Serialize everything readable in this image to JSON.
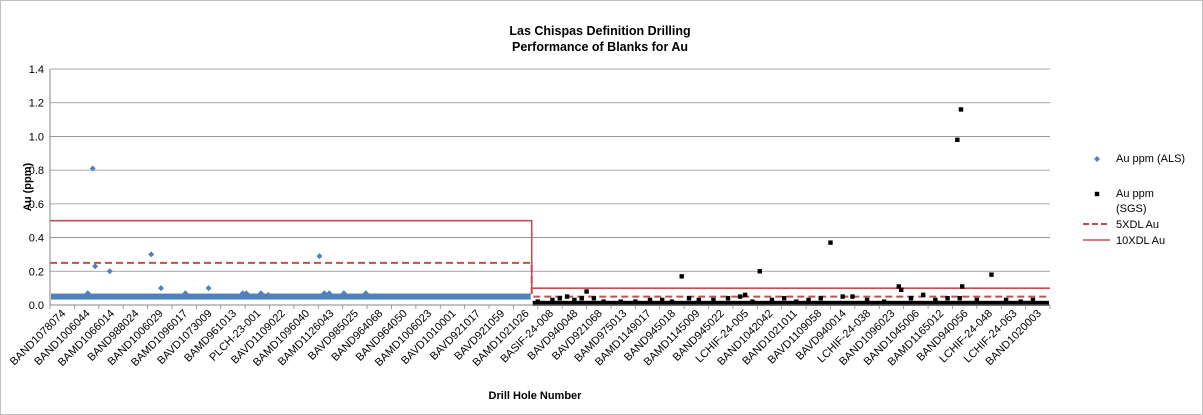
{
  "chart_data": {
    "type": "scatter",
    "title": [
      "Las Chispas Definition Drilling",
      "Performance of Blanks for Au"
    ],
    "xlabel": "Drill Hole Number",
    "ylabel": "Au (ppm)",
    "ylim": [
      0,
      1.4
    ],
    "yticks": [
      "0.0",
      "0.2",
      "0.4",
      "0.6",
      "0.8",
      "1.0",
      "1.2",
      "1.4"
    ],
    "grid": true,
    "legend_position": "right",
    "categories": [
      "BAND1078074",
      "BAND1006044",
      "BAMD1066014",
      "BAND988024",
      "BAND1006029",
      "BAMD1096017",
      "BAVD1073009",
      "BAMD961013",
      "PLCH-23-001",
      "BAVD1109022",
      "BAMD1096040",
      "BAMD1126043",
      "BAVD985025",
      "BAND964068",
      "BAND964050",
      "BAMD1006023",
      "BAVD1010001",
      "BAVD921017",
      "BAVD921059",
      "BAMD1021026",
      "BASIF-24-008",
      "BAVD940048",
      "BAVD921068",
      "BAMD975013",
      "BAMD1149017",
      "BAND945018",
      "BAMD1145009",
      "BAND945022",
      "LCHIF-24-005",
      "BAND1042042",
      "BAND1021011",
      "BAVD1109058",
      "BAVD940014",
      "LCHIF-24-038",
      "BAND1096023",
      "BAND1045006",
      "BAMD1165012",
      "BAND940056",
      "LCHIF-24-048",
      "LCHIF-24-063",
      "BAND1020003"
    ],
    "series": [
      {
        "name": "Au ppm (ALS)",
        "color": "#4f81bd",
        "marker": "diamond",
        "baseline_value": 0.05,
        "x_range": [
          0,
          19.75
        ],
        "points": [
          [
            0.2,
            0.05
          ],
          [
            1.55,
            0.07
          ],
          [
            1.75,
            0.81
          ],
          [
            1.85,
            0.23
          ],
          [
            2.45,
            0.2
          ],
          [
            4.15,
            0.3
          ],
          [
            4.55,
            0.1
          ],
          [
            5.55,
            0.07
          ],
          [
            6.5,
            0.1
          ],
          [
            7.9,
            0.07
          ],
          [
            8.05,
            0.07
          ],
          [
            8.65,
            0.07
          ],
          [
            8.95,
            0.06
          ],
          [
            11.05,
            0.29
          ],
          [
            11.25,
            0.07
          ],
          [
            11.45,
            0.07
          ],
          [
            12.05,
            0.07
          ],
          [
            12.95,
            0.07
          ]
        ]
      },
      {
        "name": "Au ppm (SGS)",
        "color": "#000000",
        "marker": "square",
        "baseline_value": 0.01,
        "x_range": [
          19.75,
          41
        ],
        "points": [
          [
            20.0,
            0.02
          ],
          [
            20.6,
            0.03
          ],
          [
            20.9,
            0.04
          ],
          [
            21.2,
            0.05
          ],
          [
            21.5,
            0.03
          ],
          [
            21.8,
            0.04
          ],
          [
            22.0,
            0.08
          ],
          [
            22.3,
            0.04
          ],
          [
            22.7,
            0.02
          ],
          [
            23.4,
            0.02
          ],
          [
            24.0,
            0.02
          ],
          [
            24.6,
            0.03
          ],
          [
            25.1,
            0.03
          ],
          [
            25.5,
            0.02
          ],
          [
            25.9,
            0.17
          ],
          [
            26.2,
            0.04
          ],
          [
            26.6,
            0.03
          ],
          [
            27.2,
            0.03
          ],
          [
            27.8,
            0.04
          ],
          [
            28.3,
            0.05
          ],
          [
            28.5,
            0.06
          ],
          [
            28.8,
            0.02
          ],
          [
            29.1,
            0.2
          ],
          [
            29.6,
            0.03
          ],
          [
            30.1,
            0.04
          ],
          [
            30.6,
            0.02
          ],
          [
            31.1,
            0.03
          ],
          [
            31.6,
            0.04
          ],
          [
            32.0,
            0.37
          ],
          [
            32.5,
            0.05
          ],
          [
            32.9,
            0.05
          ],
          [
            33.5,
            0.03
          ],
          [
            34.2,
            0.02
          ],
          [
            34.8,
            0.11
          ],
          [
            34.9,
            0.09
          ],
          [
            35.3,
            0.04
          ],
          [
            35.8,
            0.06
          ],
          [
            36.3,
            0.03
          ],
          [
            36.8,
            0.04
          ],
          [
            37.2,
            0.98
          ],
          [
            37.35,
            1.16
          ],
          [
            37.3,
            0.04
          ],
          [
            37.4,
            0.11
          ],
          [
            38.0,
            0.03
          ],
          [
            38.6,
            0.18
          ],
          [
            39.2,
            0.03
          ],
          [
            39.8,
            0.02
          ],
          [
            40.3,
            0.03
          ]
        ]
      },
      {
        "name": "5XDL Au",
        "color": "#c0504d",
        "style": "dashed",
        "segments": [
          {
            "x": [
              0,
              19.75
            ],
            "y": 0.25
          },
          {
            "x": [
              19.75,
              41
            ],
            "y": 0.05
          }
        ]
      },
      {
        "name": "10XDL Au",
        "color": "#c0504d",
        "style": "solid",
        "segments": [
          {
            "x": [
              0,
              19.75
            ],
            "y": 0.5
          },
          {
            "x": [
              19.75,
              41
            ],
            "y": 0.1
          }
        ]
      }
    ],
    "legend": [
      [
        "Au ppm (ALS)"
      ],
      [
        "Au ppm",
        "(SGS)"
      ],
      [
        "5XDL Au"
      ],
      [
        "10XDL Au"
      ]
    ]
  }
}
